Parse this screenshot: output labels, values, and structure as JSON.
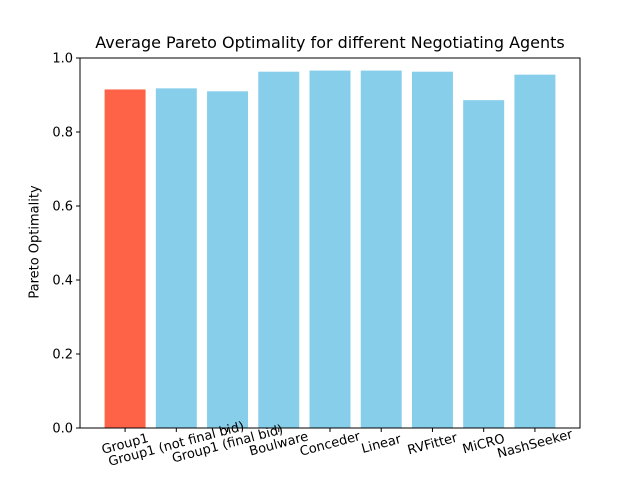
{
  "chart_data": {
    "type": "bar",
    "title": "Average Pareto Optimality for different Negotiating Agents",
    "xlabel": "",
    "ylabel": "Pareto Optimality",
    "categories": [
      "Group1",
      "Group1 (not final bid)",
      "Group1 (final bid)",
      "Boulware",
      "Conceder",
      "Linear",
      "RVFitter",
      "MiCRO",
      "NashSeeker"
    ],
    "values": [
      0.915,
      0.918,
      0.91,
      0.963,
      0.966,
      0.966,
      0.963,
      0.886,
      0.955
    ],
    "colors": [
      "#ff6347",
      "#87ceeb",
      "#87ceeb",
      "#87ceeb",
      "#87ceeb",
      "#87ceeb",
      "#87ceeb",
      "#87ceeb",
      "#87ceeb"
    ],
    "ylim": [
      0,
      1.0
    ],
    "yticks": [
      "0.0",
      "0.2",
      "0.4",
      "0.6",
      "0.8",
      "1.0"
    ],
    "grid": false,
    "legend": "none"
  }
}
